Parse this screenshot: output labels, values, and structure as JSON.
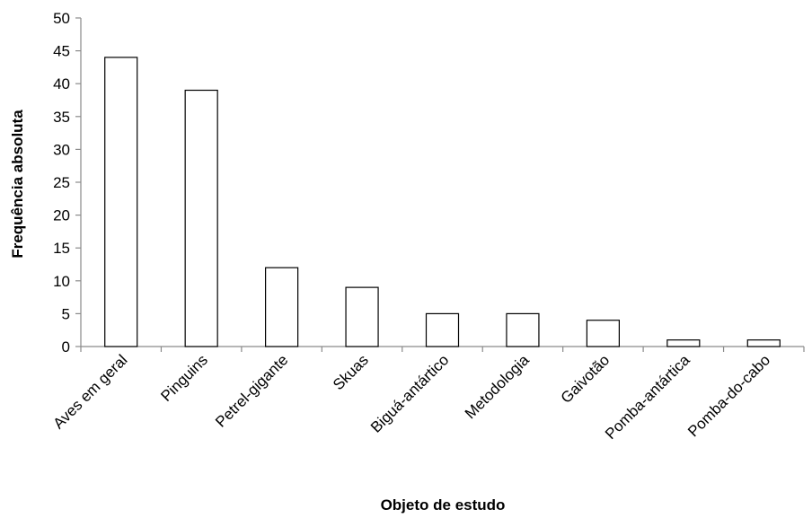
{
  "chart_data": {
    "type": "bar",
    "categories": [
      "Aves em geral",
      "Pinguins",
      "Petrel-gigante",
      "Skuas",
      "Biguá-antártico",
      "Metodologia",
      "Gaivotão",
      "Pomba-antártica",
      "Pomba-do-cabo"
    ],
    "values": [
      44,
      39,
      12,
      9,
      5,
      5,
      4,
      1,
      1
    ],
    "title": "",
    "xlabel": "Objeto de estudo",
    "ylabel": "Frequência absoluta",
    "ylim": [
      0,
      50
    ],
    "yticks": [
      0,
      5,
      10,
      15,
      20,
      25,
      30,
      35,
      40,
      45,
      50
    ],
    "ytick_labels": [
      "0",
      "5",
      "10",
      "15",
      "20",
      "25",
      "30",
      "35",
      "40",
      "45",
      "50"
    ],
    "grid": false,
    "legend": "none",
    "colors": {
      "bar_fill": "#ffffff",
      "bar_stroke": "#000000",
      "axis": "#8a8a8a"
    }
  }
}
